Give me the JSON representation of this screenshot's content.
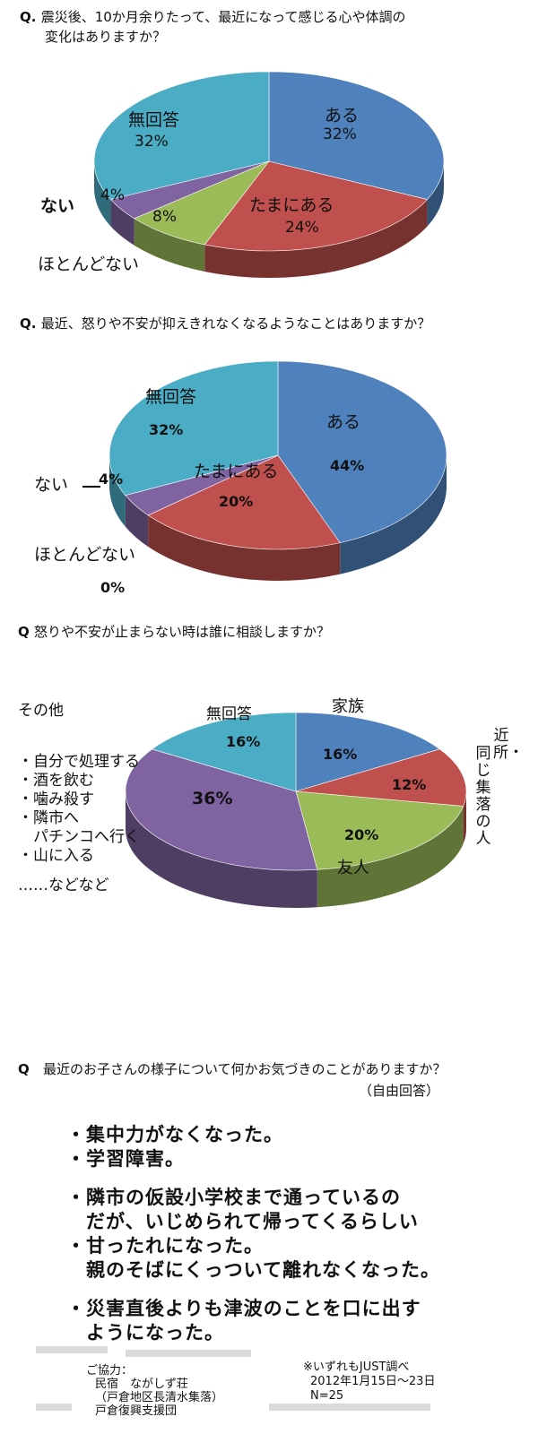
{
  "chart_data": [
    {
      "type": "pie",
      "title": "震災後、10か月余りたって、最近になって感じる心や体調の変化はありますか？",
      "title_line1": "震災後、10か月余りたって、最近になって感じる心や体調の",
      "title_line2": "変化はありますか？",
      "slices": [
        {
          "name": "ある",
          "value": 32,
          "label": "32%",
          "color": "#4f81bd"
        },
        {
          "name": "たまにある",
          "value": 24,
          "label": "24%",
          "color": "#c0504d"
        },
        {
          "name": "ほとんどない",
          "value": 8,
          "label": "8%",
          "color": "#9bbb59"
        },
        {
          "name": "ない",
          "value": 4,
          "label": "4%",
          "color": "#8064a2"
        },
        {
          "name": "無回答",
          "value": 32,
          "label": "32%",
          "color": "#4bacc6"
        }
      ]
    },
    {
      "type": "pie",
      "title": "最近、怒りや不安が抑えきれなくなるようなことはありますか？",
      "slices": [
        {
          "name": "ある",
          "value": 44,
          "label": "44%",
          "color": "#4f81bd"
        },
        {
          "name": "たまにある",
          "value": 20,
          "label": "20%",
          "color": "#c0504d"
        },
        {
          "name": "ほとんどない",
          "value": 0,
          "label": "0%",
          "color": "#9bbb59"
        },
        {
          "name": "ない",
          "value": 4,
          "label": "4%",
          "color": "#8064a2"
        },
        {
          "name": "無回答",
          "value": 32,
          "label": "32%",
          "color": "#4bacc6"
        }
      ]
    },
    {
      "type": "pie",
      "title": "怒りや不安が止まらない時は誰に相談しますか？",
      "slices": [
        {
          "name": "家族",
          "value": 16,
          "label": "16%",
          "color": "#4f81bd"
        },
        {
          "name": "近所・同じ集落の人",
          "value": 12,
          "label": "12%",
          "color": "#c0504d"
        },
        {
          "name": "友人",
          "value": 20,
          "label": "20%",
          "color": "#9bbb59"
        },
        {
          "name": "その他",
          "value": 36,
          "label": "36%",
          "color": "#8064a2"
        },
        {
          "name": "無回答",
          "value": 16,
          "label": "16%",
          "color": "#4bacc6"
        }
      ],
      "other_items": [
        "・自分で処理する",
        "・酒を飲む",
        "・噛み殺す",
        "・隣市へ",
        "　パチンコへ行く",
        "・山に入る",
        "……などなど"
      ],
      "vertical_col1": "近所・",
      "vertical_col2": "同じ集落の人"
    }
  ],
  "q_prefix_dot": "Q.",
  "q_prefix": "Q",
  "q4": {
    "title": "最近のお子さんの様子について何かお気づきのことがありますか？",
    "note": "（自由回答）",
    "answers": [
      "・集中力がなくなった。",
      "・学習障害。",
      "",
      "・隣市の仮設小学校まで通っているの",
      "　だが、いじめられて帰ってくるらしい",
      "・甘ったれになった。",
      "　親のそばにくっついて離れなくなった。",
      "",
      "・災害直後よりも津波のことを口に出す",
      "　ようになった。"
    ]
  },
  "footer": {
    "coop_label": "ご協力：",
    "coop_lines": [
      "民宿　ながしず荘",
      "（戸倉地区長清水集落）",
      "戸倉復興支援団"
    ],
    "source": "※いずれもJUST調べ",
    "date": "2012年1月15日～23日",
    "n": "N=25"
  }
}
